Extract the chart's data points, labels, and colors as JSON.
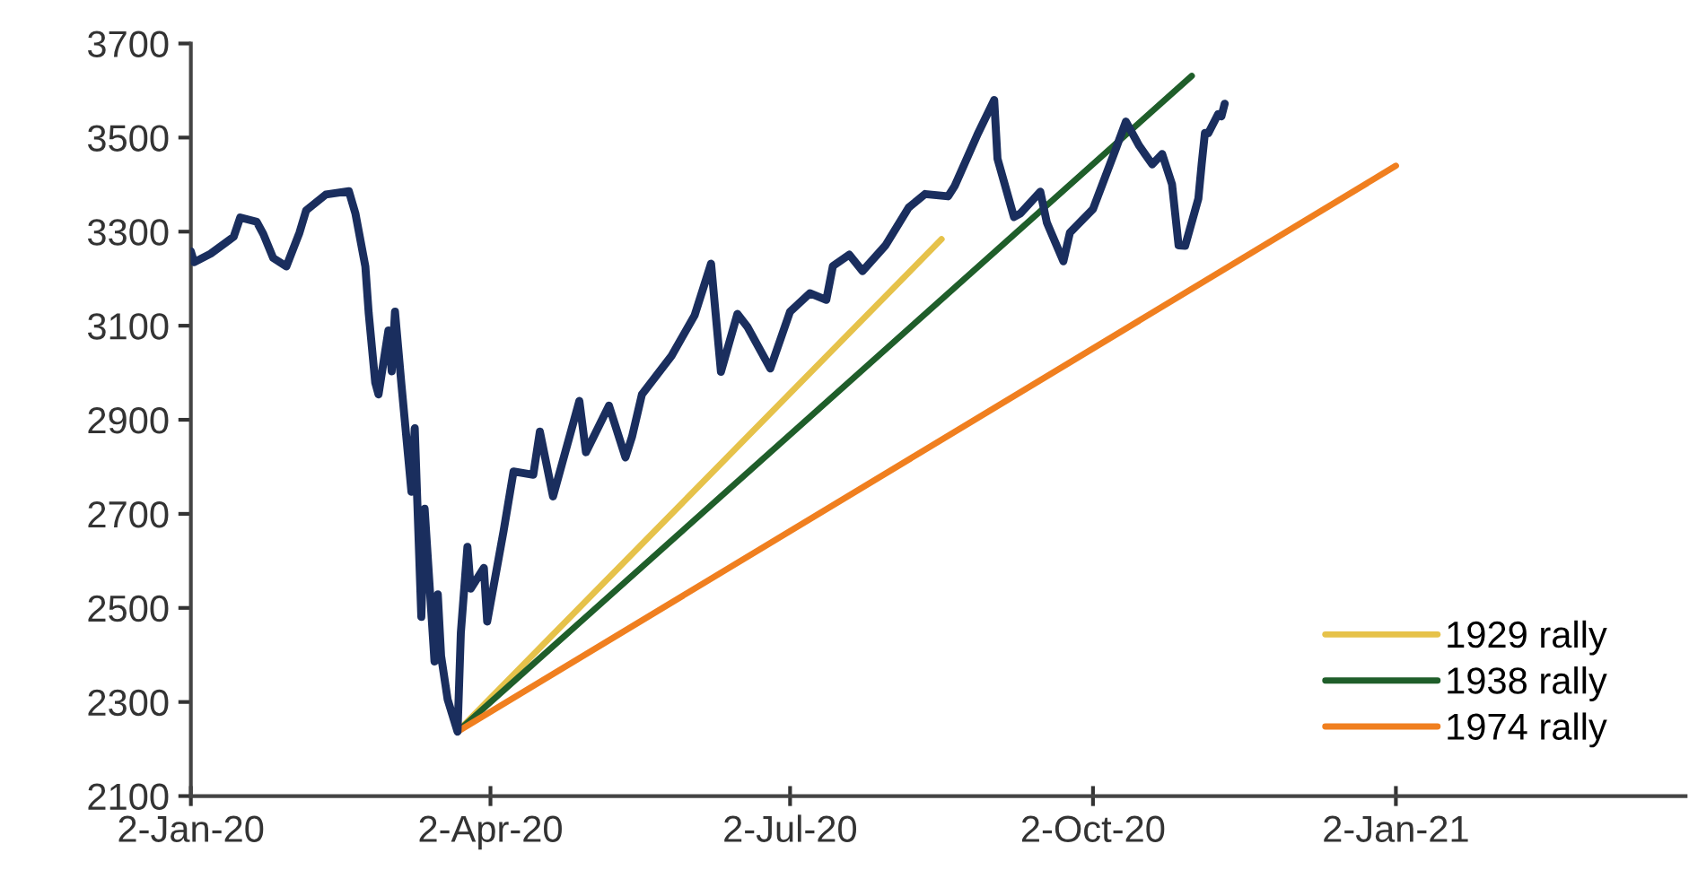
{
  "chart_data": {
    "type": "line",
    "xlim": [
      "2020-01-02",
      "2021-03-31"
    ],
    "xticks": [
      {
        "value": "2020-01-02",
        "label": "2-Jan-20"
      },
      {
        "value": "2020-04-02",
        "label": "2-Apr-20"
      },
      {
        "value": "2020-07-02",
        "label": "2-Jul-20"
      },
      {
        "value": "2020-10-02",
        "label": "2-Oct-20"
      },
      {
        "value": "2021-01-02",
        "label": "2-Jan-21"
      }
    ],
    "ylim": [
      2100,
      3700
    ],
    "yticks": [
      2100,
      2300,
      2500,
      2700,
      2900,
      3100,
      3300,
      3500,
      3700
    ],
    "grid": false,
    "legend": "bottom right",
    "marker": "none",
    "line_style": "solid",
    "series": [
      {
        "color": "#1a2e5e",
        "x": [
          "2020-01-02",
          "2020-01-03",
          "2020-01-08",
          "2020-01-15",
          "2020-01-17",
          "2020-01-22",
          "2020-01-24",
          "2020-01-27",
          "2020-01-31",
          "2020-02-04",
          "2020-02-06",
          "2020-02-12",
          "2020-02-19",
          "2020-02-21",
          "2020-02-24",
          "2020-02-25",
          "2020-02-27",
          "2020-02-28",
          "2020-03-02",
          "2020-03-03",
          "2020-03-04",
          "2020-03-06",
          "2020-03-09",
          "2020-03-10",
          "2020-03-12",
          "2020-03-13",
          "2020-03-16",
          "2020-03-17",
          "2020-03-18",
          "2020-03-20",
          "2020-03-23",
          "2020-03-24",
          "2020-03-26",
          "2020-03-27",
          "2020-03-31",
          "2020-04-01",
          "2020-04-06",
          "2020-04-09",
          "2020-04-15",
          "2020-04-17",
          "2020-04-21",
          "2020-04-29",
          "2020-05-01",
          "2020-05-08",
          "2020-05-13",
          "2020-05-15",
          "2020-05-18",
          "2020-05-27",
          "2020-06-03",
          "2020-06-08",
          "2020-06-11",
          "2020-06-16",
          "2020-06-19",
          "2020-06-26",
          "2020-07-02",
          "2020-07-08",
          "2020-07-13",
          "2020-07-15",
          "2020-07-20",
          "2020-07-24",
          "2020-07-31",
          "2020-08-07",
          "2020-08-12",
          "2020-08-19",
          "2020-08-21",
          "2020-08-28",
          "2020-09-02",
          "2020-09-03",
          "2020-09-08",
          "2020-09-10",
          "2020-09-16",
          "2020-09-18",
          "2020-09-23",
          "2020-09-25",
          "2020-10-02",
          "2020-10-09",
          "2020-10-12",
          "2020-10-16",
          "2020-10-20",
          "2020-10-23",
          "2020-10-26",
          "2020-10-28",
          "2020-10-30",
          "2020-11-03",
          "2020-11-04",
          "2020-11-05",
          "2020-11-06",
          "2020-11-09",
          "2020-11-10",
          "2020-11-11"
        ],
        "values": [
          3258,
          3235,
          3253,
          3289,
          3330,
          3321,
          3295,
          3244,
          3226,
          3298,
          3345,
          3379,
          3386,
          3338,
          3226,
          3128,
          2979,
          2954,
          3090,
          3003,
          3130,
          2972,
          2747,
          2882,
          2481,
          2711,
          2386,
          2529,
          2398,
          2305,
          2237,
          2447,
          2630,
          2541,
          2585,
          2471,
          2664,
          2790,
          2783,
          2875,
          2737,
          2940,
          2831,
          2930,
          2820,
          2864,
          2954,
          3036,
          3122,
          3232,
          3002,
          3125,
          3098,
          3009,
          3130,
          3169,
          3155,
          3227,
          3251,
          3216,
          3271,
          3351,
          3380,
          3375,
          3397,
          3508,
          3580,
          3455,
          3331,
          3339,
          3385,
          3319,
          3237,
          3298,
          3348,
          3477,
          3534,
          3483,
          3443,
          3465,
          3401,
          3271,
          3270,
          3370,
          3443,
          3510,
          3509,
          3550,
          3545,
          3572
        ]
      },
      {
        "name": "1929 rally",
        "color": "#e6c24a",
        "x": [
          "2020-03-23",
          "2020-08-17"
        ],
        "values": [
          2237,
          3284
        ]
      },
      {
        "name": "1938 rally",
        "color": "#1f5e2a",
        "x": [
          "2020-03-23",
          "2020-11-01"
        ],
        "values": [
          2237,
          3631
        ]
      },
      {
        "name": "1974 rally",
        "color": "#f07f1f",
        "x": [
          "2020-03-23",
          "2021-01-02"
        ],
        "values": [
          2237,
          3440
        ]
      }
    ]
  }
}
